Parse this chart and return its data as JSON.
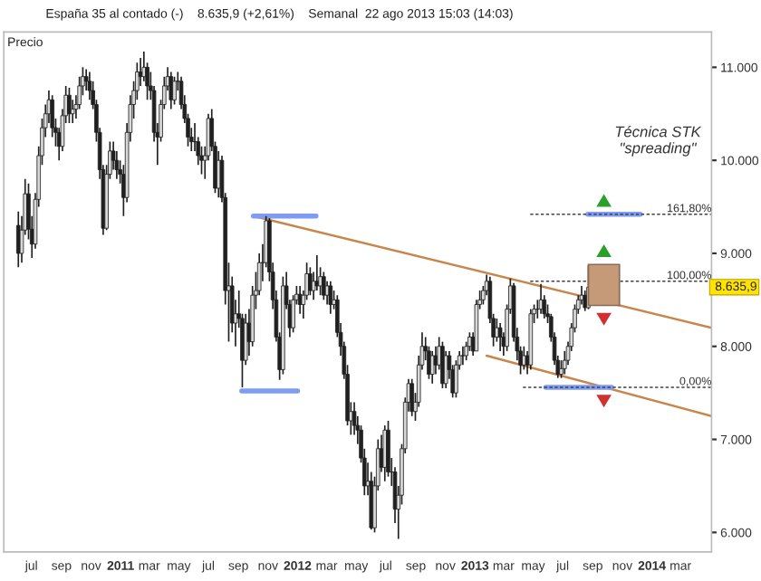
{
  "chart_data": {
    "type": "candlestick",
    "title": "España 35 al contado (-)    8.635,9 (+2,61%)    Semanal  22 ago 2013 15:03 (14:03)",
    "ylabel": "Precio",
    "annotations": [
      "Técnica STK\n\"spreading\"",
      "8.635,9"
    ],
    "xlim": [
      "2010-05-05",
      "2014-05-04"
    ],
    "xticks": [
      {
        "value": "2010-07-01",
        "label": "jul"
      },
      {
        "value": "2010-09-01",
        "label": "sep"
      },
      {
        "value": "2010-11-01",
        "label": "nov"
      },
      {
        "value": "2011-01-01",
        "label": "2011"
      },
      {
        "value": "2011-03-01",
        "label": "mar"
      },
      {
        "value": "2011-05-01",
        "label": "may"
      },
      {
        "value": "2011-07-01",
        "label": "jul"
      },
      {
        "value": "2011-09-01",
        "label": "sep"
      },
      {
        "value": "2011-11-01",
        "label": "nov"
      },
      {
        "value": "2012-01-01",
        "label": "2012"
      },
      {
        "value": "2012-03-01",
        "label": "mar"
      },
      {
        "value": "2012-05-01",
        "label": "may"
      },
      {
        "value": "2012-07-01",
        "label": "jul"
      },
      {
        "value": "2012-09-01",
        "label": "sep"
      },
      {
        "value": "2012-11-01",
        "label": "nov"
      },
      {
        "value": "2013-01-01",
        "label": "2013"
      },
      {
        "value": "2013-03-01",
        "label": "mar"
      },
      {
        "value": "2013-05-01",
        "label": "may"
      },
      {
        "value": "2013-07-01",
        "label": "jul"
      },
      {
        "value": "2013-09-01",
        "label": "sep"
      },
      {
        "value": "2013-11-01",
        "label": "nov"
      },
      {
        "value": "2014-01-01",
        "label": "2014"
      },
      {
        "value": "2014-03-01",
        "label": "mar"
      }
    ],
    "ylim": [
      5790,
      11380
    ],
    "yticks": [
      {
        "value": 6000,
        "label": "6.000"
      },
      {
        "value": 7000,
        "label": "7.000"
      },
      {
        "value": 8000,
        "label": "8.000"
      },
      {
        "value": 9000,
        "label": "9.000"
      },
      {
        "value": 10000,
        "label": "10.000"
      },
      {
        "value": 11000,
        "label": "11.000"
      }
    ],
    "grid": false,
    "legend": false,
    "x": [
      "2010-06-04",
      "2010-06-11",
      "2010-06-18",
      "2010-06-25",
      "2010-07-02",
      "2010-07-09",
      "2010-07-16",
      "2010-07-23",
      "2010-07-30",
      "2010-08-06",
      "2010-08-13",
      "2010-08-20",
      "2010-08-27",
      "2010-09-03",
      "2010-09-10",
      "2010-09-17",
      "2010-09-24",
      "2010-10-01",
      "2010-10-08",
      "2010-10-15",
      "2010-10-22",
      "2010-10-29",
      "2010-11-05",
      "2010-11-12",
      "2010-11-19",
      "2010-11-26",
      "2010-12-03",
      "2010-12-10",
      "2010-12-17",
      "2010-12-24",
      "2010-12-31",
      "2011-01-07",
      "2011-01-14",
      "2011-01-21",
      "2011-01-28",
      "2011-02-04",
      "2011-02-11",
      "2011-02-18",
      "2011-02-25",
      "2011-03-04",
      "2011-03-11",
      "2011-03-18",
      "2011-03-25",
      "2011-04-01",
      "2011-04-08",
      "2011-04-15",
      "2011-04-22",
      "2011-04-29",
      "2011-05-06",
      "2011-05-13",
      "2011-05-20",
      "2011-05-27",
      "2011-06-03",
      "2011-06-10",
      "2011-06-17",
      "2011-06-24",
      "2011-07-01",
      "2011-07-08",
      "2011-07-15",
      "2011-07-22",
      "2011-07-29",
      "2011-08-05",
      "2011-08-12",
      "2011-08-19",
      "2011-08-26",
      "2011-09-02",
      "2011-09-09",
      "2011-09-16",
      "2011-09-23",
      "2011-09-30",
      "2011-10-07",
      "2011-10-14",
      "2011-10-21",
      "2011-10-28",
      "2011-11-04",
      "2011-11-11",
      "2011-11-18",
      "2011-11-25",
      "2011-12-02",
      "2011-12-09",
      "2011-12-16",
      "2011-12-23",
      "2011-12-30",
      "2012-01-06",
      "2012-01-13",
      "2012-01-20",
      "2012-01-27",
      "2012-02-03",
      "2012-02-10",
      "2012-02-17",
      "2012-02-24",
      "2012-03-02",
      "2012-03-09",
      "2012-03-16",
      "2012-03-23",
      "2012-03-30",
      "2012-04-06",
      "2012-04-13",
      "2012-04-20",
      "2012-04-27",
      "2012-05-04",
      "2012-05-11",
      "2012-05-18",
      "2012-05-25",
      "2012-06-01",
      "2012-06-08",
      "2012-06-15",
      "2012-06-22",
      "2012-06-29",
      "2012-07-06",
      "2012-07-13",
      "2012-07-20",
      "2012-07-27",
      "2012-08-03",
      "2012-08-10",
      "2012-08-17",
      "2012-08-24",
      "2012-08-31",
      "2012-09-07",
      "2012-09-14",
      "2012-09-21",
      "2012-09-28",
      "2012-10-05",
      "2012-10-12",
      "2012-10-19",
      "2012-10-26",
      "2012-11-02",
      "2012-11-09",
      "2012-11-16",
      "2012-11-23",
      "2012-11-30",
      "2012-12-07",
      "2012-12-14",
      "2012-12-21",
      "2012-12-28",
      "2013-01-04",
      "2013-01-11",
      "2013-01-18",
      "2013-01-25",
      "2013-02-01",
      "2013-02-08",
      "2013-02-15",
      "2013-02-22",
      "2013-03-01",
      "2013-03-08",
      "2013-03-15",
      "2013-03-22",
      "2013-03-29",
      "2013-04-05",
      "2013-04-12",
      "2013-04-19",
      "2013-04-26",
      "2013-05-03",
      "2013-05-10",
      "2013-05-17",
      "2013-05-24",
      "2013-05-31",
      "2013-06-07",
      "2013-06-14",
      "2013-06-21",
      "2013-06-28",
      "2013-07-05",
      "2013-07-12",
      "2013-07-19",
      "2013-07-26",
      "2013-08-02",
      "2013-08-09",
      "2013-08-16",
      "2013-08-23"
    ],
    "ohlc": [
      [
        9300,
        9450,
        8850,
        9000
      ],
      [
        9000,
        9400,
        8900,
        9250
      ],
      [
        9250,
        9800,
        9200,
        9640
      ],
      [
        9640,
        9750,
        9150,
        9260
      ],
      [
        9260,
        9400,
        8950,
        9100
      ],
      [
        9100,
        9650,
        9050,
        9580
      ],
      [
        9580,
        10150,
        9500,
        10050
      ],
      [
        10050,
        10450,
        9950,
        10350
      ],
      [
        10350,
        10600,
        10250,
        10500
      ],
      [
        10500,
        10750,
        10400,
        10650
      ],
      [
        10650,
        10700,
        10250,
        10350
      ],
      [
        10350,
        10450,
        10150,
        10300
      ],
      [
        10300,
        10350,
        10000,
        10150
      ],
      [
        10150,
        10550,
        10100,
        10480
      ],
      [
        10480,
        10800,
        10400,
        10700
      ],
      [
        10700,
        10780,
        10400,
        10500
      ],
      [
        10500,
        10650,
        10400,
        10550
      ],
      [
        10550,
        10700,
        10450,
        10600
      ],
      [
        10600,
        10900,
        10550,
        10800
      ],
      [
        10800,
        11000,
        10700,
        10900
      ],
      [
        10900,
        10980,
        10750,
        10850
      ],
      [
        10850,
        10950,
        10650,
        10750
      ],
      [
        10750,
        10850,
        10550,
        10600
      ],
      [
        10600,
        10650,
        10200,
        10300
      ],
      [
        10300,
        10350,
        9800,
        9900
      ],
      [
        9900,
        9950,
        9200,
        9270
      ],
      [
        9270,
        9950,
        9250,
        9850
      ],
      [
        9850,
        10200,
        9800,
        10100
      ],
      [
        10100,
        10200,
        9900,
        10000
      ],
      [
        10000,
        10100,
        9800,
        9900
      ],
      [
        9900,
        10000,
        9750,
        9850
      ],
      [
        9850,
        9950,
        9400,
        9600
      ],
      [
        9600,
        10400,
        9550,
        10300
      ],
      [
        10300,
        10700,
        10200,
        10600
      ],
      [
        10600,
        10850,
        10450,
        10750
      ],
      [
        10750,
        11050,
        10650,
        10950
      ],
      [
        10950,
        11100,
        10800,
        10900
      ],
      [
        10900,
        11170,
        10850,
        11000
      ],
      [
        11000,
        11050,
        10650,
        10800
      ],
      [
        10800,
        10950,
        10650,
        10750
      ],
      [
        10750,
        10800,
        10200,
        10300
      ],
      [
        10300,
        10400,
        9950,
        10250
      ],
      [
        10250,
        10650,
        10200,
        10600
      ],
      [
        10600,
        10900,
        10550,
        10800
      ],
      [
        10800,
        11000,
        10750,
        10900
      ],
      [
        10900,
        10950,
        10550,
        10650
      ],
      [
        10650,
        10900,
        10600,
        10850
      ],
      [
        10850,
        10950,
        10750,
        10850
      ],
      [
        10850,
        10900,
        10550,
        10600
      ],
      [
        10600,
        10700,
        10400,
        10450
      ],
      [
        10450,
        10500,
        10150,
        10250
      ],
      [
        10250,
        10350,
        10100,
        10200
      ],
      [
        10200,
        10400,
        10100,
        10200
      ],
      [
        10200,
        10250,
        9950,
        10050
      ],
      [
        10050,
        10150,
        9850,
        10000
      ],
      [
        10000,
        10150,
        9800,
        10050
      ],
      [
        10050,
        10500,
        10000,
        10450
      ],
      [
        10450,
        10550,
        10100,
        10150
      ],
      [
        10150,
        10200,
        9650,
        9700
      ],
      [
        9700,
        10100,
        9600,
        10000
      ],
      [
        10000,
        10050,
        9550,
        9600
      ],
      [
        9600,
        9650,
        8450,
        8600
      ],
      [
        8600,
        8900,
        8050,
        8650
      ],
      [
        8650,
        8750,
        8150,
        8250
      ],
      [
        8250,
        8500,
        8000,
        8350
      ],
      [
        8350,
        8600,
        8200,
        8300
      ],
      [
        8300,
        8350,
        7560,
        7850
      ],
      [
        7850,
        8350,
        7800,
        8250
      ],
      [
        8250,
        8400,
        7900,
        8050
      ],
      [
        8050,
        8650,
        8000,
        8550
      ],
      [
        8550,
        8800,
        8400,
        8600
      ],
      [
        8600,
        9000,
        8550,
        8900
      ],
      [
        8900,
        9100,
        8700,
        8900
      ],
      [
        8900,
        9400,
        8850,
        9350
      ],
      [
        9350,
        9380,
        8700,
        8800
      ],
      [
        8800,
        8900,
        8400,
        8500
      ],
      [
        8500,
        8600,
        8050,
        8100
      ],
      [
        8100,
        8150,
        7640,
        7750
      ],
      [
        7750,
        8750,
        7700,
        8650
      ],
      [
        8650,
        8800,
        8400,
        8450
      ],
      [
        8450,
        8500,
        8100,
        8200
      ],
      [
        8200,
        8550,
        8150,
        8500
      ],
      [
        8500,
        8650,
        8450,
        8560
      ],
      [
        8560,
        8650,
        8350,
        8450
      ],
      [
        8450,
        8600,
        8300,
        8550
      ],
      [
        8550,
        8900,
        8500,
        8780
      ],
      [
        8780,
        8850,
        8550,
        8600
      ],
      [
        8600,
        8800,
        8500,
        8700
      ],
      [
        8700,
        8980,
        8600,
        8650
      ],
      [
        8650,
        8850,
        8550,
        8750
      ],
      [
        8750,
        8800,
        8500,
        8550
      ],
      [
        8550,
        8700,
        8450,
        8650
      ],
      [
        8650,
        8700,
        8350,
        8450
      ],
      [
        8450,
        8600,
        8400,
        8500
      ],
      [
        8500,
        8550,
        8100,
        8150
      ],
      [
        8150,
        8250,
        7900,
        8000
      ],
      [
        8000,
        8050,
        7650,
        7700
      ],
      [
        7700,
        7800,
        7150,
        7200
      ],
      [
        7200,
        7400,
        7050,
        7300
      ],
      [
        7300,
        7400,
        7050,
        7150
      ],
      [
        7150,
        7250,
        6950,
        7100
      ],
      [
        7100,
        7150,
        6750,
        6800
      ],
      [
        6800,
        6900,
        6400,
        6500
      ],
      [
        6500,
        6750,
        6400,
        6550
      ],
      [
        6550,
        6650,
        6030,
        6050
      ],
      [
        6050,
        6600,
        6000,
        6500
      ],
      [
        6500,
        7000,
        6450,
        6900
      ],
      [
        6900,
        7050,
        6650,
        6700
      ],
      [
        6700,
        7150,
        6550,
        7100
      ],
      [
        7100,
        7200,
        6600,
        6650
      ],
      [
        6650,
        6800,
        6500,
        6650
      ],
      [
        6650,
        6700,
        6100,
        6250
      ],
      [
        6250,
        6500,
        5930,
        6400
      ],
      [
        6400,
        6950,
        6300,
        6900
      ],
      [
        6900,
        7450,
        6850,
        7400
      ],
      [
        7400,
        7650,
        7300,
        7600
      ],
      [
        7600,
        7650,
        7250,
        7300
      ],
      [
        7300,
        7500,
        7200,
        7400
      ],
      [
        7400,
        7900,
        7350,
        7800
      ],
      [
        7800,
        8150,
        7750,
        8000
      ],
      [
        8000,
        8100,
        7850,
        7950
      ],
      [
        7950,
        8000,
        7650,
        7700
      ],
      [
        7700,
        7950,
        7600,
        7900
      ],
      [
        7900,
        8000,
        7700,
        7800
      ],
      [
        7800,
        8100,
        7750,
        8000
      ],
      [
        8000,
        8050,
        7550,
        7600
      ],
      [
        7600,
        7950,
        7550,
        7900
      ],
      [
        7900,
        7950,
        7650,
        7750
      ],
      [
        7750,
        7800,
        7450,
        7500
      ],
      [
        7500,
        7850,
        7450,
        7800
      ],
      [
        7800,
        7950,
        7750,
        7900
      ],
      [
        7900,
        8000,
        7800,
        7900
      ],
      [
        7900,
        8050,
        7850,
        8000
      ],
      [
        8000,
        8150,
        7950,
        8100
      ],
      [
        8100,
        8150,
        7900,
        7950
      ],
      [
        7950,
        8500,
        7950,
        8450
      ],
      [
        8450,
        8600,
        8400,
        8500
      ],
      [
        8500,
        8650,
        8450,
        8600
      ],
      [
        8600,
        8770,
        8550,
        8700
      ],
      [
        8700,
        8750,
        8250,
        8300
      ],
      [
        8300,
        8350,
        8000,
        8100
      ],
      [
        8100,
        8300,
        8050,
        8200
      ],
      [
        8200,
        8250,
        7950,
        8100
      ],
      [
        8100,
        8150,
        7900,
        8000
      ],
      [
        8000,
        8450,
        7950,
        8400
      ],
      [
        8400,
        8730,
        8350,
        8650
      ],
      [
        8650,
        8680,
        8050,
        8100
      ],
      [
        8100,
        8200,
        7850,
        7950
      ],
      [
        7950,
        8000,
        7700,
        7800
      ],
      [
        7800,
        8000,
        7750,
        7900
      ],
      [
        7900,
        7950,
        7700,
        7800
      ],
      [
        7800,
        8400,
        7750,
        8350
      ],
      [
        8350,
        8450,
        8250,
        8400
      ],
      [
        8400,
        8500,
        8300,
        8400
      ],
      [
        8400,
        8670,
        8350,
        8500
      ],
      [
        8500,
        8550,
        8300,
        8350
      ],
      [
        8350,
        8450,
        8250,
        8320
      ],
      [
        8320,
        8350,
        8050,
        8100
      ],
      [
        8100,
        8150,
        7800,
        7850
      ],
      [
        7850,
        7900,
        7660,
        7700
      ],
      [
        7700,
        7850,
        7660,
        7760
      ],
      [
        7760,
        7950,
        7700,
        7850
      ],
      [
        7850,
        8050,
        7800,
        8000
      ],
      [
        8000,
        8250,
        7950,
        8200
      ],
      [
        8200,
        8450,
        8150,
        8400
      ],
      [
        8400,
        8550,
        8350,
        8500
      ],
      [
        8500,
        8650,
        8450,
        8550
      ],
      [
        8550,
        8600,
        8380,
        8416
      ],
      [
        8416,
        8870,
        8400,
        8635.9
      ]
    ],
    "series": [
      {
        "type": "line",
        "color": "#c8864a",
        "x": [
          "2011-10-02",
          "2014-05-04"
        ],
        "values": [
          9400,
          8200
        ]
      },
      {
        "type": "line",
        "color": "#c8864a",
        "x": [
          "2013-01-25",
          "2014-05-04"
        ],
        "values": [
          7900,
          7250
        ]
      },
      {
        "type": "line",
        "color": "#7f9cf5",
        "x": [
          "2011-10-02",
          "2012-02-08"
        ],
        "values": [
          9400,
          9400
        ]
      },
      {
        "type": "line",
        "color": "#7f9cf5",
        "x": [
          "2011-09-08",
          "2012-01-01"
        ],
        "values": [
          7520,
          7520
        ]
      },
      {
        "type": "line",
        "color": "#7f9cf5",
        "x": [
          "2013-05-27",
          "2013-10-10"
        ],
        "values": [
          7560,
          7560
        ]
      },
      {
        "type": "line",
        "color": "#7f9cf5",
        "x": [
          "2013-08-22",
          "2013-12-08"
        ],
        "values": [
          9420,
          9420
        ]
      },
      {
        "type": "line",
        "name": "161,80%",
        "color": "#404040",
        "line_style": "dashed",
        "x": [
          "2013-04-25",
          "2014-05-04"
        ],
        "values": [
          9420,
          9420
        ]
      },
      {
        "type": "line",
        "name": "100,00%",
        "color": "#404040",
        "line_style": "dashed",
        "x": [
          "2013-04-25",
          "2014-05-04"
        ],
        "values": [
          8700,
          8700
        ]
      },
      {
        "type": "line",
        "name": "0,00%",
        "color": "#404040",
        "line_style": "dashed",
        "x": [
          "2013-04-10",
          "2014-05-04"
        ],
        "values": [
          7560,
          7560
        ]
      },
      {
        "type": "bar",
        "color": "#c49a78",
        "x": [
          "2013-09-24"
        ],
        "base": [
          8440
        ],
        "values": [
          440
        ]
      }
    ]
  }
}
